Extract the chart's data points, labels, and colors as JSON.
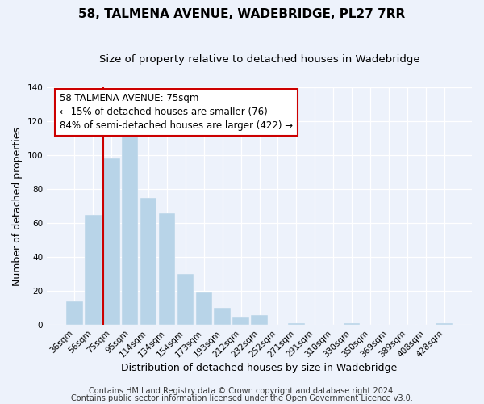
{
  "title": "58, TALMENA AVENUE, WADEBRIDGE, PL27 7RR",
  "subtitle": "Size of property relative to detached houses in Wadebridge",
  "xlabel": "Distribution of detached houses by size in Wadebridge",
  "ylabel": "Number of detached properties",
  "bar_labels": [
    "36sqm",
    "56sqm",
    "75sqm",
    "95sqm",
    "114sqm",
    "134sqm",
    "154sqm",
    "173sqm",
    "193sqm",
    "212sqm",
    "232sqm",
    "252sqm",
    "271sqm",
    "291sqm",
    "310sqm",
    "330sqm",
    "350sqm",
    "369sqm",
    "389sqm",
    "408sqm",
    "428sqm"
  ],
  "bar_values": [
    14,
    65,
    98,
    114,
    75,
    66,
    30,
    19,
    10,
    5,
    6,
    0,
    1,
    0,
    0,
    1,
    0,
    0,
    0,
    0,
    1
  ],
  "bar_color": "#b8d4e8",
  "highlight_line_color": "#cc0000",
  "highlight_bar_index": 2,
  "ylim": [
    0,
    140
  ],
  "yticks": [
    0,
    20,
    40,
    60,
    80,
    100,
    120,
    140
  ],
  "annotation_title": "58 TALMENA AVENUE: 75sqm",
  "annotation_line1": "← 15% of detached houses are smaller (76)",
  "annotation_line2": "84% of semi-detached houses are larger (422) →",
  "annotation_box_facecolor": "#ffffff",
  "annotation_box_edgecolor": "#cc0000",
  "footer_line1": "Contains HM Land Registry data © Crown copyright and database right 2024.",
  "footer_line2": "Contains public sector information licensed under the Open Government Licence v3.0.",
  "background_color": "#edf2fb",
  "grid_color": "#ffffff",
  "title_fontsize": 11,
  "subtitle_fontsize": 9.5,
  "tick_fontsize": 7.5,
  "xlabel_fontsize": 9,
  "ylabel_fontsize": 9,
  "annotation_fontsize": 8.5,
  "footer_fontsize": 7
}
